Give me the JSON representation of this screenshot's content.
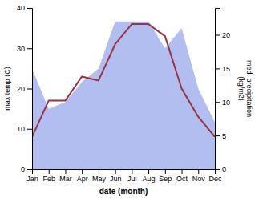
{
  "chart_data": {
    "type": "line",
    "categories": [
      "Jan",
      "Feb",
      "Mar",
      "Apr",
      "May",
      "Jun",
      "Jul",
      "Aug",
      "Sep",
      "Oct",
      "Nov",
      "Dec"
    ],
    "xlabel": "date (month)",
    "ylabel": "max temp (C)",
    "y2label": "med. precipitation\n(kg/m2)",
    "series": [
      {
        "type": "area",
        "axis": "y2",
        "color": "#b3bef0",
        "values": [
          15,
          9,
          10,
          13,
          15,
          22,
          22,
          22,
          18,
          21,
          12,
          7
        ]
      },
      {
        "type": "line",
        "color": "#993344",
        "values": [
          8,
          17,
          17,
          23,
          22,
          31,
          36,
          36,
          33,
          20,
          13,
          8
        ]
      }
    ],
    "ylim": [
      0,
      40
    ],
    "yticks": [
      0,
      10,
      20,
      30,
      40
    ],
    "y2lim": [
      0,
      24
    ],
    "y2ticks": [
      0,
      5,
      10,
      15,
      20
    ],
    "grid": false
  }
}
